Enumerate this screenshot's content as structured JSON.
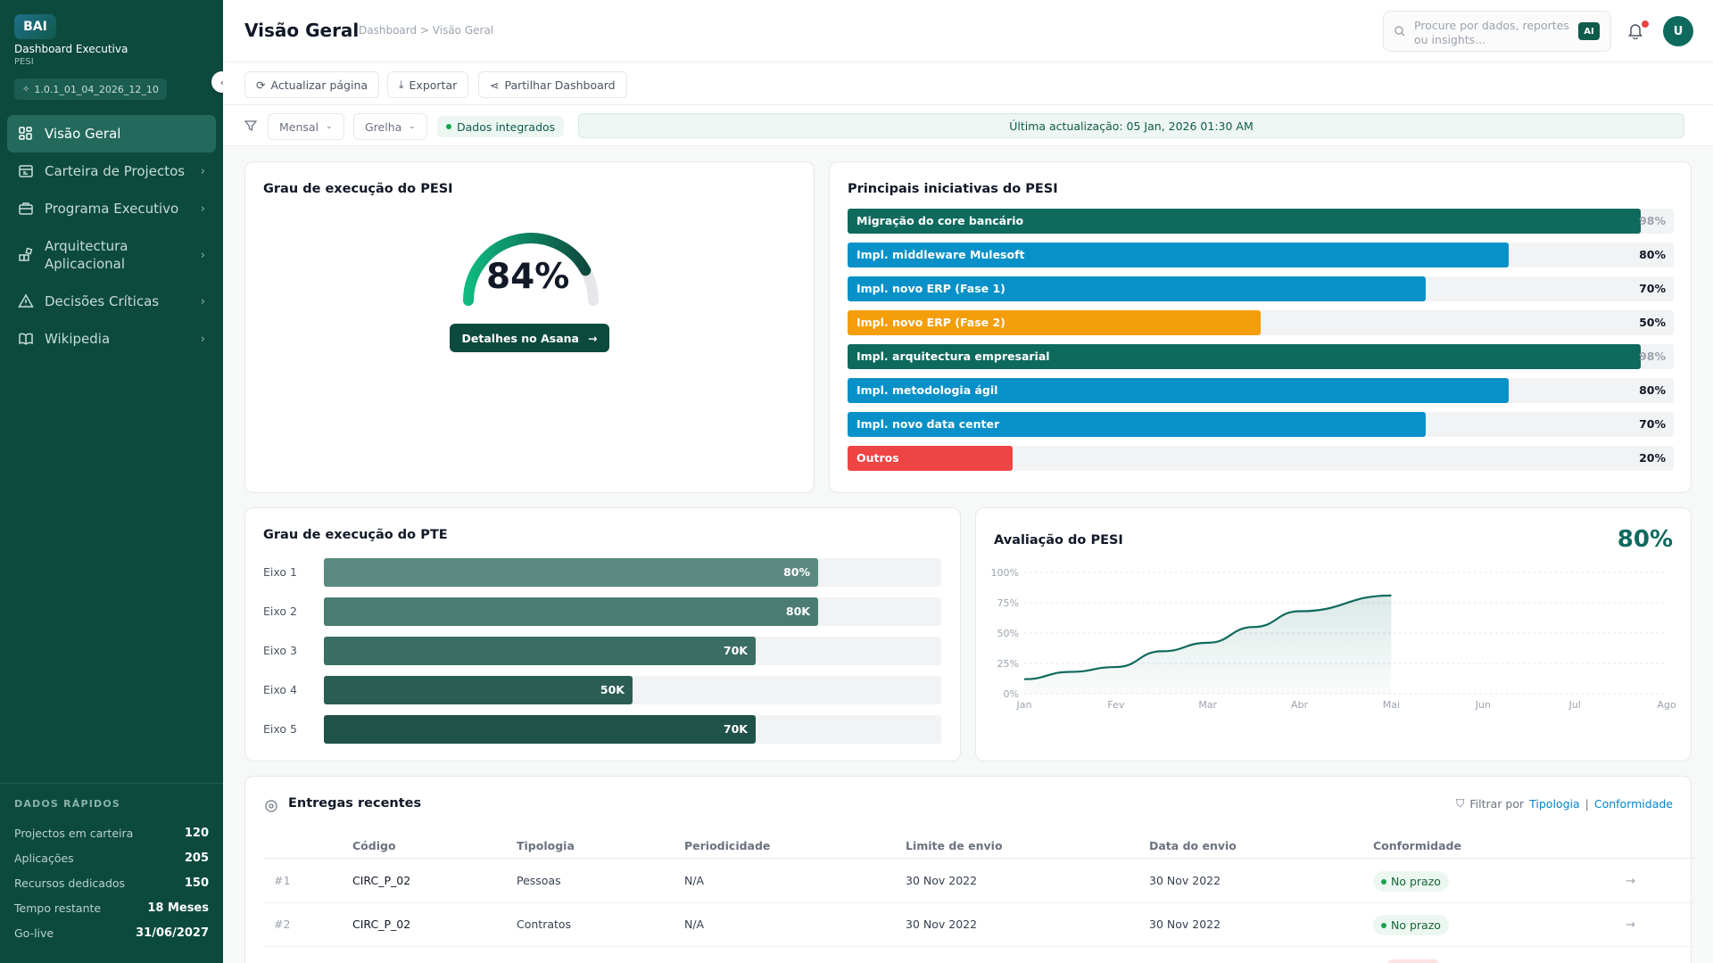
{
  "sidebar": {
    "brand": "BAI",
    "title": "Dashboard Executiva",
    "subtitle": "PESI",
    "version": "1.0.1_01_04_2026_12_10",
    "nav": [
      {
        "label": "Visão Geral",
        "icon": "grid-icon",
        "active": true
      },
      {
        "label": "Carteira de Projectos",
        "icon": "browser-icon"
      },
      {
        "label": "Programa Executivo",
        "icon": "briefcase-icon"
      },
      {
        "label": "Arquitectura Aplicacional",
        "icon": "blocks-icon"
      },
      {
        "label": "Decisões Críticas",
        "icon": "warning-icon"
      },
      {
        "label": "Wikipedia",
        "icon": "book-icon"
      }
    ],
    "quick": {
      "heading": "DADOS RÁPIDOS",
      "rows": [
        {
          "label": "Projectos em carteira",
          "value": "120"
        },
        {
          "label": "Aplicações",
          "value": "205"
        },
        {
          "label": "Recursos dedicados",
          "value": "150"
        },
        {
          "label": "Tempo restante",
          "value": "18 Meses"
        },
        {
          "label": "Go-live",
          "value": "31/06/2027"
        }
      ]
    }
  },
  "header": {
    "title": "Visão Geral",
    "breadcrumb": "Dashboard > Visão Geral",
    "search_placeholder": "Procure por dados, reportes ou insights...",
    "ai_badge": "AI",
    "avatar": "U"
  },
  "actions": {
    "refresh": "Actualizar página",
    "export": "Exportar",
    "share": "Partilhar Dashboard"
  },
  "filters": {
    "period": "Mensal",
    "view": "Grelha",
    "integrated": "Dados integrados",
    "last_update": "Última actualização: 05 Jan, 2026 01:30 AM"
  },
  "gauge": {
    "title": "Grau de execução do PESI",
    "value": 84,
    "value_label": "84%",
    "button": "Detalhes no Asana"
  },
  "initiatives": {
    "title": "Principais iniciativas do PESI",
    "items": [
      {
        "label": "Migração do core bancário",
        "value": 98,
        "pct": "98%",
        "color": "#0f6a5e"
      },
      {
        "label": "Impl. middleware Mulesoft",
        "value": 80,
        "pct": "80%",
        "color": "#0891c9"
      },
      {
        "label": "Impl. novo ERP (Fase 1)",
        "value": 70,
        "pct": "70%",
        "color": "#0891c9"
      },
      {
        "label": "Impl. novo ERP (Fase 2)",
        "value": 50,
        "pct": "50%",
        "color": "#f59e0b"
      },
      {
        "label": "Impl. arquitectura empresarial",
        "value": 98,
        "pct": "98%",
        "color": "#0f6a5e"
      },
      {
        "label": "Impl. metodologia ágil",
        "value": 80,
        "pct": "80%",
        "color": "#0891c9"
      },
      {
        "label": "Impl. novo data center",
        "value": 70,
        "pct": "70%",
        "color": "#0891c9"
      },
      {
        "label": "Outros",
        "value": 20,
        "pct": "20%",
        "color": "#ef4444"
      }
    ]
  },
  "pte": {
    "title": "Grau de execução do PTE",
    "rows": [
      {
        "name": "Eixo 1",
        "value": 80,
        "label": "80%",
        "color": "#5a8a80"
      },
      {
        "name": "Eixo 2",
        "value": 80,
        "label": "80K",
        "color": "#4a7c72"
      },
      {
        "name": "Eixo 3",
        "value": 70,
        "label": "70K",
        "color": "#3a6d63"
      },
      {
        "name": "Eixo 4",
        "value": 50,
        "label": "50K",
        "color": "#2a5e54"
      },
      {
        "name": "Eixo 5",
        "value": 70,
        "label": "70K",
        "color": "#1f5248"
      }
    ]
  },
  "evaluation": {
    "title": "Avaliação do PESI",
    "value_label": "80%"
  },
  "chart_data": {
    "type": "area",
    "x": [
      "Jan",
      "Fev",
      "Mar",
      "Abr",
      "Mai",
      "Jun",
      "Jul",
      "Ago"
    ],
    "series": [
      {
        "values": [
          12,
          18,
          22,
          35,
          42,
          55,
          68,
          81
        ],
        "x_positions": [
          0,
          0.5,
          1,
          1.5,
          2,
          2.5,
          3,
          4
        ],
        "color": "#0f6a5e"
      }
    ],
    "y_ticks": [
      "100%",
      "75%",
      "50%",
      "25%",
      "0%"
    ],
    "ylim": [
      0,
      100
    ],
    "grid": true
  },
  "deliveries": {
    "title": "Entregas recentes",
    "filter_label": "Filtrar por",
    "filter_a": "Tipologia",
    "filter_sep": "|",
    "filter_b": "Conformidade",
    "columns": [
      "Código",
      "Tipologia",
      "Periodicidade",
      "Limite de envio",
      "Data do envio",
      "Conformidade"
    ],
    "rows": [
      {
        "idx": "#1",
        "code": "CIRC_P_02",
        "type": "Pessoas",
        "period": "N/A",
        "limit": "30 Nov 2022",
        "sent": "30 Nov 2022",
        "status": "No prazo"
      },
      {
        "idx": "#2",
        "code": "CIRC_P_02",
        "type": "Contratos",
        "period": "N/A",
        "limit": "30 Nov 2022",
        "sent": "30 Nov 2022",
        "status": "No prazo"
      }
    ]
  }
}
